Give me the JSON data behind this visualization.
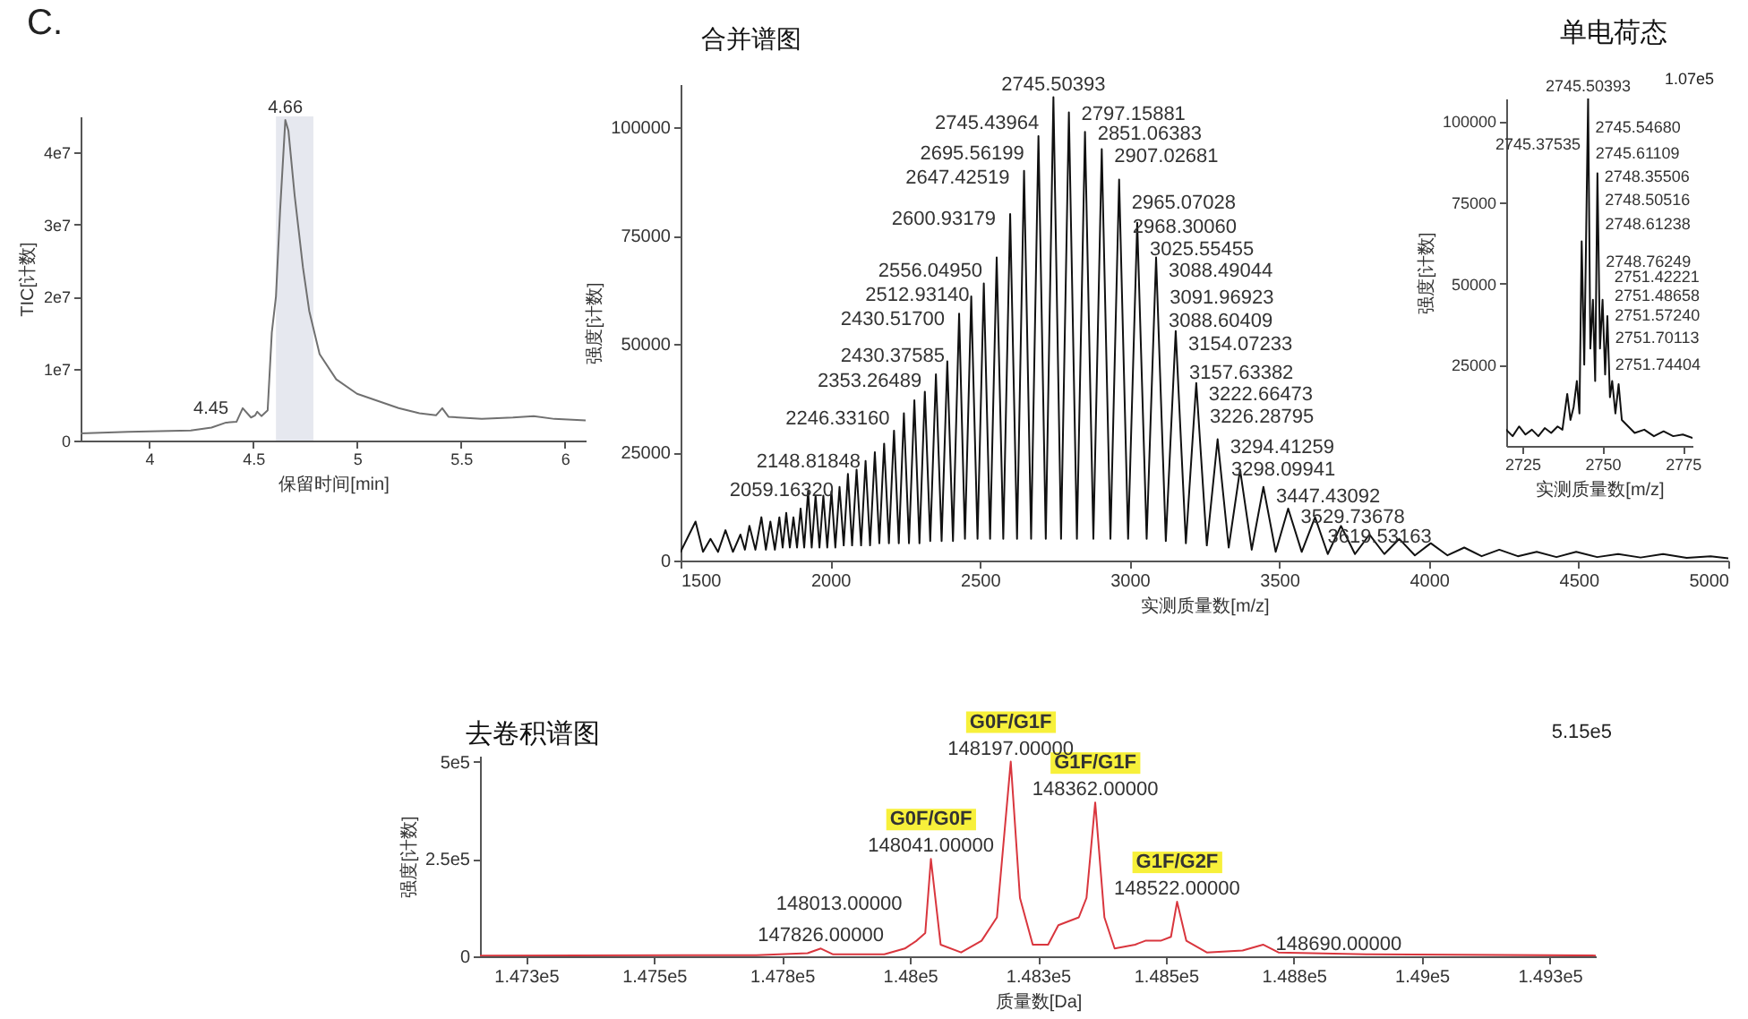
{
  "chart_data": [
    {
      "type": "line",
      "xlabel": "保留时间[min]",
      "ylabel": "TIC[计数]",
      "color": "#707070",
      "annotations": [
        "C.",
        {
          "text": "4.66",
          "x": 4.655,
          "y": 44500000
        },
        {
          "text": "4.45",
          "x": 4.45,
          "y": 4500000
        }
      ],
      "x": [
        3.67,
        3.9,
        4.2,
        4.3,
        4.37,
        4.42,
        4.45,
        4.49,
        4.51,
        4.52,
        4.54,
        4.57,
        4.59,
        4.61,
        4.63,
        4.655,
        4.67,
        4.7,
        4.74,
        4.77,
        4.82,
        4.9,
        5.0,
        5.1,
        5.2,
        5.3,
        5.38,
        5.41,
        5.44,
        5.6,
        5.75,
        5.85,
        5.95,
        6.1
      ],
      "values": [
        1000000,
        1200000,
        1400000,
        1800000,
        2500000,
        2600000,
        4500000,
        3200000,
        3500000,
        4000000,
        3400000,
        4200000,
        15000000,
        20000000,
        32000000,
        44500000,
        43000000,
        34000000,
        24000000,
        18000000,
        12000000,
        8500000,
        6500000,
        5500000,
        4500000,
        3800000,
        3500000,
        4500000,
        3300000,
        3000000,
        3200000,
        3400000,
        3000000,
        2800000
      ],
      "xlim": [
        3.67,
        6.1
      ],
      "ylim": [
        0,
        45000000
      ],
      "xticks": [
        4,
        4.5,
        5,
        5.5,
        6
      ],
      "yticks": [
        0,
        {
          "value": 10000000,
          "label": "1e7"
        },
        {
          "value": 20000000,
          "label": "2e7"
        },
        {
          "value": 30000000,
          "label": "3e7"
        },
        {
          "value": 40000000,
          "label": "4e7"
        }
      ],
      "bands": [
        {
          "axis": "x",
          "from": 4.61,
          "to": 4.79,
          "color": "#e6e8ef"
        }
      ]
    },
    {
      "type": "line",
      "title": "合并谱图",
      "xlabel": "实测质量数[m/z]",
      "ylabel": "强度[计数]",
      "color": "#111111",
      "x": [
        1500,
        1550,
        1575,
        1600,
        1625,
        1650,
        1675,
        1700,
        1715,
        1730,
        1750,
        1770,
        1785,
        1800,
        1815,
        1830,
        1841,
        1853,
        1865,
        1877,
        1889,
        1901,
        1913,
        1926,
        1938,
        1951,
        1964,
        1977,
        1990,
        2004,
        2017,
        2031,
        2045,
        2059,
        2073,
        2088,
        2103,
        2118,
        2133,
        2149,
        2164,
        2180,
        2196,
        2213,
        2229,
        2246,
        2263,
        2281,
        2298,
        2316,
        2334,
        2353,
        2372,
        2391,
        2410,
        2430.5,
        2450,
        2471,
        2492,
        2513,
        2534,
        2556,
        2578,
        2601,
        2624,
        2647.4,
        2671,
        2695.5,
        2720,
        2745.5,
        2771,
        2797.2,
        2824,
        2851,
        2879,
        2907,
        2936,
        2965,
        2995,
        3025.5,
        3057,
        3088.5,
        3121,
        3154,
        3188,
        3222.7,
        3258,
        3294,
        3331,
        3369,
        3408,
        3447,
        3488,
        3529.7,
        3575,
        3619.5,
        3662,
        3706,
        3753,
        3801,
        3851,
        3901,
        3953,
        4006,
        4062,
        4118,
        4176,
        4235,
        4297,
        4360,
        4426,
        4492,
        4562,
        4632,
        4707,
        4782,
        4861,
        4941,
        5000
      ],
      "values": [
        2000,
        9000,
        2000,
        5000,
        2000,
        7000,
        2000,
        6000,
        2500,
        8000,
        2500,
        10000,
        2500,
        9000,
        2500,
        10000,
        3000,
        11000,
        3000,
        10000,
        3000,
        12000,
        3000,
        16000,
        3000,
        15000,
        3000,
        15000,
        3000,
        16000,
        3000,
        17000,
        3500,
        20000,
        3500,
        21000,
        3500,
        23000,
        3500,
        25000,
        4000,
        27000,
        4000,
        30000,
        4000,
        34000,
        4000,
        37000,
        4000,
        39000,
        4500,
        43000,
        4500,
        46000,
        4500,
        57000,
        5000,
        61000,
        5000,
        64000,
        5000,
        70000,
        5000,
        80000,
        5000,
        90000,
        5000,
        98000,
        5000,
        107000,
        5000,
        103500,
        5000,
        99000,
        5000,
        95000,
        5000,
        88000,
        5000,
        78000,
        5000,
        70000,
        4500,
        53000,
        4000,
        41000,
        3500,
        28000,
        3000,
        21000,
        2500,
        17000,
        2000,
        12000,
        2000,
        10000,
        1500,
        8000,
        1500,
        6000,
        1500,
        5000,
        1200,
        4000,
        1200,
        3000,
        1000,
        2500,
        1000,
        2000,
        800,
        2000,
        800,
        1500,
        700,
        1500,
        600,
        1000,
        500
      ],
      "xlim": [
        1500,
        5000
      ],
      "ylim": [
        0,
        110000
      ],
      "xticks": [
        1500,
        2000,
        2500,
        3000,
        3500,
        4000,
        4500,
        5000
      ],
      "yticks": [
        0,
        25000,
        50000,
        75000,
        100000
      ],
      "annotations": [
        {
          "text": "2745.50393",
          "x": 2745.50393,
          "y": 107000
        },
        {
          "text": "2745.43964",
          "x": 2745.43964,
          "y": 101000
        },
        {
          "text": "2695.56199",
          "x": 2695.56199,
          "y": 93800
        },
        {
          "text": "2647.42519",
          "x": 2647.42519,
          "y": 88300
        },
        {
          "text": "2600.93179",
          "x": 2600.93179,
          "y": 78800
        },
        {
          "text": "2556.04950",
          "x": 2556.0495,
          "y": 66700
        },
        {
          "text": "2512.93140",
          "x": 2512.9314,
          "y": 61200
        },
        {
          "text": "2430.51700",
          "x": 2430.517,
          "y": 55600
        },
        {
          "text": "2430.37585",
          "x": 2430.37585,
          "y": 47200
        },
        {
          "text": "2353.26489",
          "x": 2353.26489,
          "y": 41300
        },
        {
          "text": "2246.33160",
          "x": 2246.3316,
          "y": 32600
        },
        {
          "text": "2148.81848",
          "x": 2148.81848,
          "y": 22700
        },
        {
          "text": "2059.16320",
          "x": 2059.1632,
          "y": 16200
        },
        {
          "text": "2797.15881",
          "x": 2797.15881,
          "y": 103000
        },
        {
          "text": "2851.06383",
          "x": 2851.06383,
          "y": 98500
        },
        {
          "text": "2907.02681",
          "x": 2907.02681,
          "y": 93300
        },
        {
          "text": "2965.07028",
          "x": 2965.07028,
          "y": 82500
        },
        {
          "text": "2968.30060",
          "x": 2968.3006,
          "y": 77000
        },
        {
          "text": "3025.55455",
          "x": 3025.55455,
          "y": 71800
        },
        {
          "text": "3088.49044",
          "x": 3088.49044,
          "y": 66700
        },
        {
          "text": "3091.96923",
          "x": 3091.96923,
          "y": 60500
        },
        {
          "text": "3088.60409",
          "x": 3088.60409,
          "y": 55300
        },
        {
          "text": "3154.07233",
          "x": 3154.07233,
          "y": 49800
        },
        {
          "text": "3157.63382",
          "x": 3157.63382,
          "y": 43300
        },
        {
          "text": "3222.66473",
          "x": 3222.66473,
          "y": 38200
        },
        {
          "text": "3226.28795",
          "x": 3226.28795,
          "y": 33000
        },
        {
          "text": "3294.41259",
          "x": 3294.41259,
          "y": 26100
        },
        {
          "text": "3298.09941",
          "x": 3298.09941,
          "y": 20900
        },
        {
          "text": "3447.43092",
          "x": 3447.43092,
          "y": 14700
        },
        {
          "text": "3529.73678",
          "x": 3529.73678,
          "y": 9900
        },
        {
          "text": "3619.53163",
          "x": 3619.53163,
          "y": 5300
        }
      ]
    },
    {
      "type": "line",
      "title": "单电荷态",
      "xlabel": "实测质量数[m/z]",
      "ylabel": "强度[计数]",
      "color": "#111111",
      "x": [
        2720,
        2722,
        2724,
        2726,
        2728,
        2730,
        2732,
        2734,
        2736,
        2737.5,
        2739,
        2740,
        2741,
        2742,
        2742.8,
        2743.5,
        2744.3,
        2745.5,
        2746.2,
        2747,
        2747.7,
        2748.4,
        2749.2,
        2750,
        2750.8,
        2751.5,
        2752.3,
        2753,
        2754,
        2755,
        2756,
        2758,
        2760,
        2763,
        2766,
        2769,
        2772,
        2775,
        2778
      ],
      "values": [
        5000,
        3000,
        6000,
        3500,
        5000,
        3000,
        5500,
        4000,
        6000,
        5000,
        16000,
        8000,
        12000,
        20000,
        10000,
        63000,
        25000,
        107000,
        30000,
        45000,
        20000,
        84000,
        30000,
        45000,
        22000,
        40000,
        15000,
        20000,
        10000,
        19000,
        8000,
        6000,
        4000,
        5000,
        3000,
        4500,
        3000,
        3500,
        2500
      ],
      "xlim": [
        2720,
        2778
      ],
      "ylim": [
        0,
        107000
      ],
      "xticks": [
        2725,
        2750,
        2775
      ],
      "yticks": [
        25000,
        50000,
        75000,
        100000
      ],
      "annotations": [
        "1.07e5",
        {
          "text": "2745.50393",
          "x": 2745.50393,
          "y": 107000
        },
        {
          "text": "2745.37535",
          "x": 2745.37535,
          "y": 93000
        },
        {
          "text": "2745.54680",
          "x": 2745.5468,
          "y": 98200
        },
        {
          "text": "2745.61109",
          "x": 2745.61109,
          "y": 90300
        },
        {
          "text": "2748.35506",
          "x": 2748.35506,
          "y": 83100
        },
        {
          "text": "2748.50516",
          "x": 2748.50516,
          "y": 75700
        },
        {
          "text": "2748.61238",
          "x": 2748.61238,
          "y": 68400
        },
        {
          "text": "2748.76249",
          "x": 2748.76249,
          "y": 56800
        },
        {
          "text": "2751.42221",
          "x": 2751.42221,
          "y": 52200
        },
        {
          "text": "2751.48658",
          "x": 2751.48658,
          "y": 46300
        },
        {
          "text": "2751.57240",
          "x": 2751.5724,
          "y": 40400
        },
        {
          "text": "2751.70113",
          "x": 2751.70113,
          "y": 33300
        },
        {
          "text": "2751.74404",
          "x": 2751.74404,
          "y": 25200
        }
      ]
    },
    {
      "type": "line",
      "title": "去卷积谱图",
      "xlabel": "质量数[Da]",
      "ylabel": "强度[计数]",
      "color": "#d9363e",
      "x": [
        147160,
        147700,
        147800,
        147826,
        147850,
        147950,
        147990,
        148013,
        148030,
        148041,
        148060,
        148100,
        148140,
        148170,
        148197,
        148215,
        148240,
        148270,
        148290,
        148330,
        148345,
        148362,
        148380,
        148400,
        148440,
        148460,
        148490,
        148510,
        148522,
        148540,
        148580,
        148650,
        148690,
        148720,
        148900,
        149340
      ],
      "values": [
        2000,
        3000,
        8000,
        20000,
        5000,
        5000,
        20000,
        40000,
        60000,
        250000,
        30000,
        10000,
        40000,
        100000,
        500000,
        150000,
        30000,
        30000,
        80000,
        100000,
        150000,
        395000,
        100000,
        20000,
        30000,
        40000,
        40000,
        50000,
        140000,
        40000,
        10000,
        15000,
        30000,
        10000,
        5000,
        2000
      ],
      "xlim": [
        147160,
        149340
      ],
      "ylim": [
        0,
        515000
      ],
      "xticks": [
        {
          "value": 147250,
          "label": "1.473e5"
        },
        {
          "value": 147500,
          "label": "1.475e5"
        },
        {
          "value": 147750,
          "label": "1.478e5"
        },
        {
          "value": 148000,
          "label": "1.48e5"
        },
        {
          "value": 148250,
          "label": "1.483e5"
        },
        {
          "value": 148500,
          "label": "1.485e5"
        },
        {
          "value": 148750,
          "label": "1.488e5"
        },
        {
          "value": 149000,
          "label": "1.49e5"
        },
        {
          "value": 149250,
          "label": "1.493e5"
        }
      ],
      "yticks": [
        0,
        {
          "value": 250000,
          "label": "2.5e5"
        },
        {
          "value": 500000,
          "label": "5e5"
        }
      ],
      "annotations": [
        "5.15e5",
        {
          "text": "G0F/G1F",
          "x": 148197,
          "y": 500000
        },
        {
          "text": "148197.00000",
          "x": 148197,
          "y": 500000
        },
        {
          "text": "G1F/G1F",
          "x": 148362,
          "y": 395000
        },
        {
          "text": "148362.00000",
          "x": 148362,
          "y": 395000
        },
        {
          "text": "G0F/G0F",
          "x": 148041,
          "y": 250000
        },
        {
          "text": "148041.00000",
          "x": 148041,
          "y": 250000
        },
        {
          "text": "G1F/G2F",
          "x": 148522,
          "y": 140000
        },
        {
          "text": "148522.00000",
          "x": 148522,
          "y": 140000
        },
        {
          "text": "148013.00000",
          "x": 148013,
          "y": 133000
        },
        {
          "text": "147826.00000",
          "x": 147826,
          "y": 20000
        },
        {
          "text": "148690.00000",
          "x": 148690,
          "y": 30000
        }
      ]
    }
  ]
}
